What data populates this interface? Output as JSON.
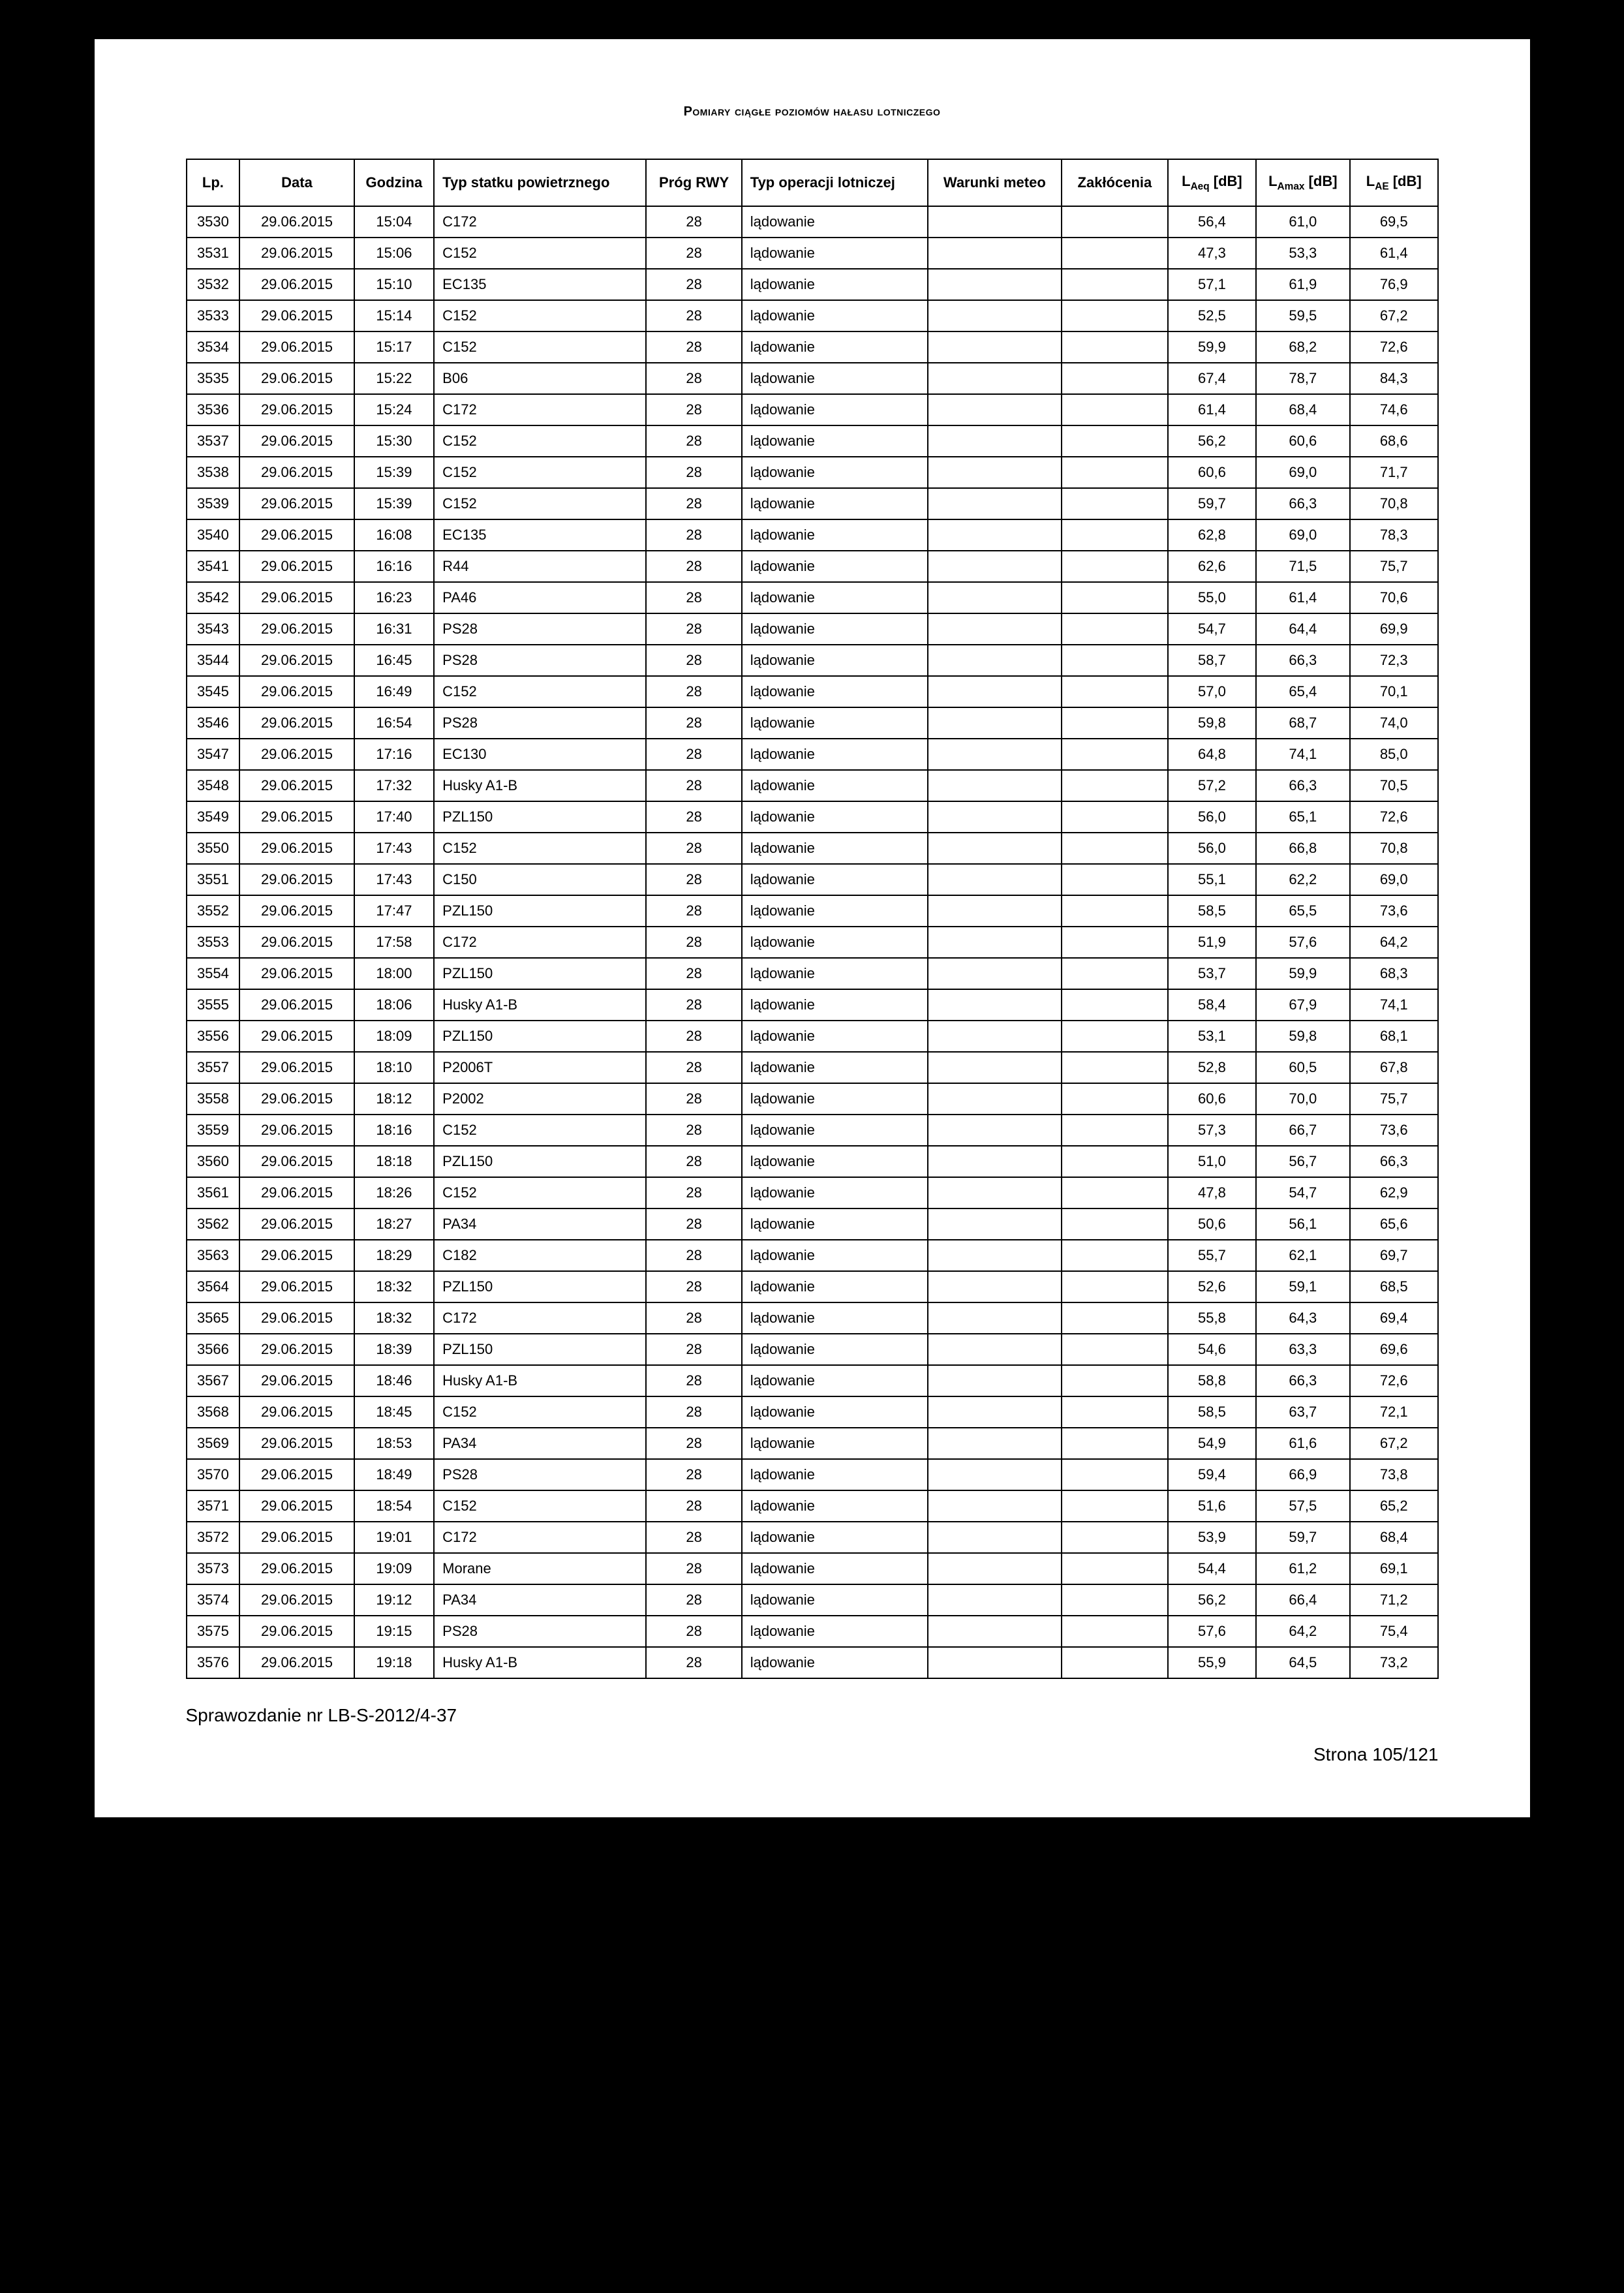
{
  "title": "Pomiary ciągłe poziomów hałasu lotniczego",
  "columns": {
    "lp": "Lp.",
    "data": "Data",
    "godzina": "Godzina",
    "typ_statku": "Typ statku powietrznego",
    "prog": "Próg RWY",
    "typ_operacji": "Typ operacji lotniczej",
    "warunki": "Warunki meteo",
    "zaklocenia": "Zakłócenia",
    "laeq": "L",
    "laeq_sub": "Aeq",
    "laeq_unit": " [dB]",
    "lamax": "L",
    "lamax_sub": "Amax",
    "lamax_unit": " [dB]",
    "lae": "L",
    "lae_sub": "AE",
    "lae_unit": " [dB]"
  },
  "rows": [
    {
      "lp": "3530",
      "data": "29.06.2015",
      "godz": "15:04",
      "typ": "C172",
      "prog": "28",
      "oper": "lądowanie",
      "war": "",
      "zak": "",
      "laeq": "56,4",
      "lamax": "61,0",
      "lae": "69,5"
    },
    {
      "lp": "3531",
      "data": "29.06.2015",
      "godz": "15:06",
      "typ": "C152",
      "prog": "28",
      "oper": "lądowanie",
      "war": "",
      "zak": "",
      "laeq": "47,3",
      "lamax": "53,3",
      "lae": "61,4"
    },
    {
      "lp": "3532",
      "data": "29.06.2015",
      "godz": "15:10",
      "typ": "EC135",
      "prog": "28",
      "oper": "lądowanie",
      "war": "",
      "zak": "",
      "laeq": "57,1",
      "lamax": "61,9",
      "lae": "76,9"
    },
    {
      "lp": "3533",
      "data": "29.06.2015",
      "godz": "15:14",
      "typ": "C152",
      "prog": "28",
      "oper": "lądowanie",
      "war": "",
      "zak": "",
      "laeq": "52,5",
      "lamax": "59,5",
      "lae": "67,2"
    },
    {
      "lp": "3534",
      "data": "29.06.2015",
      "godz": "15:17",
      "typ": "C152",
      "prog": "28",
      "oper": "lądowanie",
      "war": "",
      "zak": "",
      "laeq": "59,9",
      "lamax": "68,2",
      "lae": "72,6"
    },
    {
      "lp": "3535",
      "data": "29.06.2015",
      "godz": "15:22",
      "typ": "B06",
      "prog": "28",
      "oper": "lądowanie",
      "war": "",
      "zak": "",
      "laeq": "67,4",
      "lamax": "78,7",
      "lae": "84,3"
    },
    {
      "lp": "3536",
      "data": "29.06.2015",
      "godz": "15:24",
      "typ": "C172",
      "prog": "28",
      "oper": "lądowanie",
      "war": "",
      "zak": "",
      "laeq": "61,4",
      "lamax": "68,4",
      "lae": "74,6"
    },
    {
      "lp": "3537",
      "data": "29.06.2015",
      "godz": "15:30",
      "typ": "C152",
      "prog": "28",
      "oper": "lądowanie",
      "war": "",
      "zak": "",
      "laeq": "56,2",
      "lamax": "60,6",
      "lae": "68,6"
    },
    {
      "lp": "3538",
      "data": "29.06.2015",
      "godz": "15:39",
      "typ": "C152",
      "prog": "28",
      "oper": "lądowanie",
      "war": "",
      "zak": "",
      "laeq": "60,6",
      "lamax": "69,0",
      "lae": "71,7"
    },
    {
      "lp": "3539",
      "data": "29.06.2015",
      "godz": "15:39",
      "typ": "C152",
      "prog": "28",
      "oper": "lądowanie",
      "war": "",
      "zak": "",
      "laeq": "59,7",
      "lamax": "66,3",
      "lae": "70,8"
    },
    {
      "lp": "3540",
      "data": "29.06.2015",
      "godz": "16:08",
      "typ": "EC135",
      "prog": "28",
      "oper": "lądowanie",
      "war": "",
      "zak": "",
      "laeq": "62,8",
      "lamax": "69,0",
      "lae": "78,3"
    },
    {
      "lp": "3541",
      "data": "29.06.2015",
      "godz": "16:16",
      "typ": "R44",
      "prog": "28",
      "oper": "lądowanie",
      "war": "",
      "zak": "",
      "laeq": "62,6",
      "lamax": "71,5",
      "lae": "75,7"
    },
    {
      "lp": "3542",
      "data": "29.06.2015",
      "godz": "16:23",
      "typ": "PA46",
      "prog": "28",
      "oper": "lądowanie",
      "war": "",
      "zak": "",
      "laeq": "55,0",
      "lamax": "61,4",
      "lae": "70,6"
    },
    {
      "lp": "3543",
      "data": "29.06.2015",
      "godz": "16:31",
      "typ": "PS28",
      "prog": "28",
      "oper": "lądowanie",
      "war": "",
      "zak": "",
      "laeq": "54,7",
      "lamax": "64,4",
      "lae": "69,9"
    },
    {
      "lp": "3544",
      "data": "29.06.2015",
      "godz": "16:45",
      "typ": "PS28",
      "prog": "28",
      "oper": "lądowanie",
      "war": "",
      "zak": "",
      "laeq": "58,7",
      "lamax": "66,3",
      "lae": "72,3"
    },
    {
      "lp": "3545",
      "data": "29.06.2015",
      "godz": "16:49",
      "typ": "C152",
      "prog": "28",
      "oper": "lądowanie",
      "war": "",
      "zak": "",
      "laeq": "57,0",
      "lamax": "65,4",
      "lae": "70,1"
    },
    {
      "lp": "3546",
      "data": "29.06.2015",
      "godz": "16:54",
      "typ": "PS28",
      "prog": "28",
      "oper": "lądowanie",
      "war": "",
      "zak": "",
      "laeq": "59,8",
      "lamax": "68,7",
      "lae": "74,0"
    },
    {
      "lp": "3547",
      "data": "29.06.2015",
      "godz": "17:16",
      "typ": "EC130",
      "prog": "28",
      "oper": "lądowanie",
      "war": "",
      "zak": "",
      "laeq": "64,8",
      "lamax": "74,1",
      "lae": "85,0"
    },
    {
      "lp": "3548",
      "data": "29.06.2015",
      "godz": "17:32",
      "typ": "Husky A1-B",
      "prog": "28",
      "oper": "lądowanie",
      "war": "",
      "zak": "",
      "laeq": "57,2",
      "lamax": "66,3",
      "lae": "70,5"
    },
    {
      "lp": "3549",
      "data": "29.06.2015",
      "godz": "17:40",
      "typ": "PZL150",
      "prog": "28",
      "oper": "lądowanie",
      "war": "",
      "zak": "",
      "laeq": "56,0",
      "lamax": "65,1",
      "lae": "72,6"
    },
    {
      "lp": "3550",
      "data": "29.06.2015",
      "godz": "17:43",
      "typ": "C152",
      "prog": "28",
      "oper": "lądowanie",
      "war": "",
      "zak": "",
      "laeq": "56,0",
      "lamax": "66,8",
      "lae": "70,8"
    },
    {
      "lp": "3551",
      "data": "29.06.2015",
      "godz": "17:43",
      "typ": "C150",
      "prog": "28",
      "oper": "lądowanie",
      "war": "",
      "zak": "",
      "laeq": "55,1",
      "lamax": "62,2",
      "lae": "69,0"
    },
    {
      "lp": "3552",
      "data": "29.06.2015",
      "godz": "17:47",
      "typ": "PZL150",
      "prog": "28",
      "oper": "lądowanie",
      "war": "",
      "zak": "",
      "laeq": "58,5",
      "lamax": "65,5",
      "lae": "73,6"
    },
    {
      "lp": "3553",
      "data": "29.06.2015",
      "godz": "17:58",
      "typ": "C172",
      "prog": "28",
      "oper": "lądowanie",
      "war": "",
      "zak": "",
      "laeq": "51,9",
      "lamax": "57,6",
      "lae": "64,2"
    },
    {
      "lp": "3554",
      "data": "29.06.2015",
      "godz": "18:00",
      "typ": "PZL150",
      "prog": "28",
      "oper": "lądowanie",
      "war": "",
      "zak": "",
      "laeq": "53,7",
      "lamax": "59,9",
      "lae": "68,3"
    },
    {
      "lp": "3555",
      "data": "29.06.2015",
      "godz": "18:06",
      "typ": "Husky A1-B",
      "prog": "28",
      "oper": "lądowanie",
      "war": "",
      "zak": "",
      "laeq": "58,4",
      "lamax": "67,9",
      "lae": "74,1"
    },
    {
      "lp": "3556",
      "data": "29.06.2015",
      "godz": "18:09",
      "typ": "PZL150",
      "prog": "28",
      "oper": "lądowanie",
      "war": "",
      "zak": "",
      "laeq": "53,1",
      "lamax": "59,8",
      "lae": "68,1"
    },
    {
      "lp": "3557",
      "data": "29.06.2015",
      "godz": "18:10",
      "typ": "P2006T",
      "prog": "28",
      "oper": "lądowanie",
      "war": "",
      "zak": "",
      "laeq": "52,8",
      "lamax": "60,5",
      "lae": "67,8"
    },
    {
      "lp": "3558",
      "data": "29.06.2015",
      "godz": "18:12",
      "typ": "P2002",
      "prog": "28",
      "oper": "lądowanie",
      "war": "",
      "zak": "",
      "laeq": "60,6",
      "lamax": "70,0",
      "lae": "75,7"
    },
    {
      "lp": "3559",
      "data": "29.06.2015",
      "godz": "18:16",
      "typ": "C152",
      "prog": "28",
      "oper": "lądowanie",
      "war": "",
      "zak": "",
      "laeq": "57,3",
      "lamax": "66,7",
      "lae": "73,6"
    },
    {
      "lp": "3560",
      "data": "29.06.2015",
      "godz": "18:18",
      "typ": "PZL150",
      "prog": "28",
      "oper": "lądowanie",
      "war": "",
      "zak": "",
      "laeq": "51,0",
      "lamax": "56,7",
      "lae": "66,3"
    },
    {
      "lp": "3561",
      "data": "29.06.2015",
      "godz": "18:26",
      "typ": "C152",
      "prog": "28",
      "oper": "lądowanie",
      "war": "",
      "zak": "",
      "laeq": "47,8",
      "lamax": "54,7",
      "lae": "62,9"
    },
    {
      "lp": "3562",
      "data": "29.06.2015",
      "godz": "18:27",
      "typ": "PA34",
      "prog": "28",
      "oper": "lądowanie",
      "war": "",
      "zak": "",
      "laeq": "50,6",
      "lamax": "56,1",
      "lae": "65,6"
    },
    {
      "lp": "3563",
      "data": "29.06.2015",
      "godz": "18:29",
      "typ": "C182",
      "prog": "28",
      "oper": "lądowanie",
      "war": "",
      "zak": "",
      "laeq": "55,7",
      "lamax": "62,1",
      "lae": "69,7"
    },
    {
      "lp": "3564",
      "data": "29.06.2015",
      "godz": "18:32",
      "typ": "PZL150",
      "prog": "28",
      "oper": "lądowanie",
      "war": "",
      "zak": "",
      "laeq": "52,6",
      "lamax": "59,1",
      "lae": "68,5"
    },
    {
      "lp": "3565",
      "data": "29.06.2015",
      "godz": "18:32",
      "typ": "C172",
      "prog": "28",
      "oper": "lądowanie",
      "war": "",
      "zak": "",
      "laeq": "55,8",
      "lamax": "64,3",
      "lae": "69,4"
    },
    {
      "lp": "3566",
      "data": "29.06.2015",
      "godz": "18:39",
      "typ": "PZL150",
      "prog": "28",
      "oper": "lądowanie",
      "war": "",
      "zak": "",
      "laeq": "54,6",
      "lamax": "63,3",
      "lae": "69,6"
    },
    {
      "lp": "3567",
      "data": "29.06.2015",
      "godz": "18:46",
      "typ": "Husky A1-B",
      "prog": "28",
      "oper": "lądowanie",
      "war": "",
      "zak": "",
      "laeq": "58,8",
      "lamax": "66,3",
      "lae": "72,6"
    },
    {
      "lp": "3568",
      "data": "29.06.2015",
      "godz": "18:45",
      "typ": "C152",
      "prog": "28",
      "oper": "lądowanie",
      "war": "",
      "zak": "",
      "laeq": "58,5",
      "lamax": "63,7",
      "lae": "72,1"
    },
    {
      "lp": "3569",
      "data": "29.06.2015",
      "godz": "18:53",
      "typ": "PA34",
      "prog": "28",
      "oper": "lądowanie",
      "war": "",
      "zak": "",
      "laeq": "54,9",
      "lamax": "61,6",
      "lae": "67,2"
    },
    {
      "lp": "3570",
      "data": "29.06.2015",
      "godz": "18:49",
      "typ": "PS28",
      "prog": "28",
      "oper": "lądowanie",
      "war": "",
      "zak": "",
      "laeq": "59,4",
      "lamax": "66,9",
      "lae": "73,8"
    },
    {
      "lp": "3571",
      "data": "29.06.2015",
      "godz": "18:54",
      "typ": "C152",
      "prog": "28",
      "oper": "lądowanie",
      "war": "",
      "zak": "",
      "laeq": "51,6",
      "lamax": "57,5",
      "lae": "65,2"
    },
    {
      "lp": "3572",
      "data": "29.06.2015",
      "godz": "19:01",
      "typ": "C172",
      "prog": "28",
      "oper": "lądowanie",
      "war": "",
      "zak": "",
      "laeq": "53,9",
      "lamax": "59,7",
      "lae": "68,4"
    },
    {
      "lp": "3573",
      "data": "29.06.2015",
      "godz": "19:09",
      "typ": "Morane",
      "prog": "28",
      "oper": "lądowanie",
      "war": "",
      "zak": "",
      "laeq": "54,4",
      "lamax": "61,2",
      "lae": "69,1"
    },
    {
      "lp": "3574",
      "data": "29.06.2015",
      "godz": "19:12",
      "typ": "PA34",
      "prog": "28",
      "oper": "lądowanie",
      "war": "",
      "zak": "",
      "laeq": "56,2",
      "lamax": "66,4",
      "lae": "71,2"
    },
    {
      "lp": "3575",
      "data": "29.06.2015",
      "godz": "19:15",
      "typ": "PS28",
      "prog": "28",
      "oper": "lądowanie",
      "war": "",
      "zak": "",
      "laeq": "57,6",
      "lamax": "64,2",
      "lae": "75,4"
    },
    {
      "lp": "3576",
      "data": "29.06.2015",
      "godz": "19:18",
      "typ": "Husky A1-B",
      "prog": "28",
      "oper": "lądowanie",
      "war": "",
      "zak": "",
      "laeq": "55,9",
      "lamax": "64,5",
      "lae": "73,2"
    }
  ],
  "footer_left": "Sprawozdanie nr LB-S-2012/4-37",
  "footer_right": "Strona 105/121"
}
